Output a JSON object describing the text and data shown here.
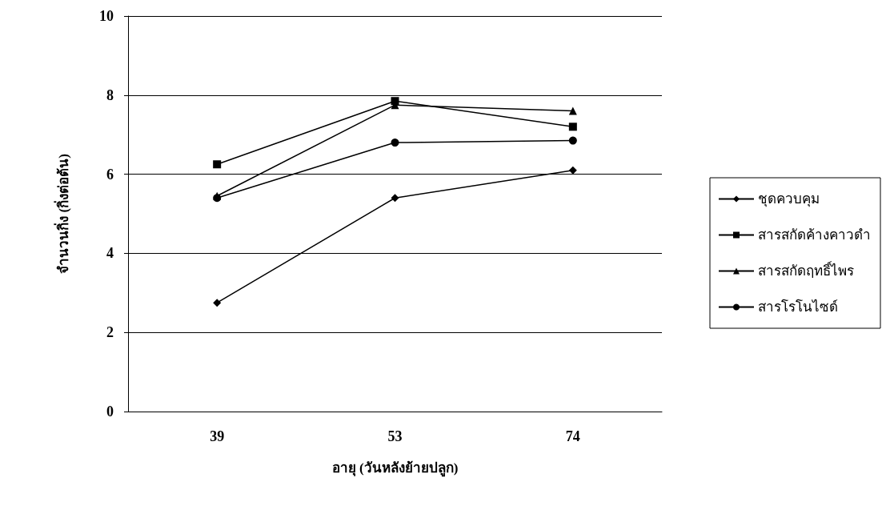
{
  "chart_data": {
    "type": "line",
    "xlabel": "อายุ (วันหลังย้ายปลูก)",
    "ylabel": "จำนวนกิ่ง (กิ่งต่อต้น)",
    "categories": [
      "39",
      "53",
      "74"
    ],
    "series": [
      {
        "name": "ชุดควบคุม",
        "color": "#000000",
        "marker": "diamond",
        "values": [
          2.75,
          5.4,
          6.1
        ]
      },
      {
        "name": "สารสกัดค้างคาวดำ",
        "color": "#000000",
        "marker": "square",
        "values": [
          6.25,
          7.85,
          7.2
        ]
      },
      {
        "name": "สารสกัดฤทธิ์ไพร",
        "color": "#000000",
        "marker": "triangle",
        "values": [
          5.45,
          7.75,
          7.6
        ]
      },
      {
        "name": "สารโรโนไซด์",
        "color": "#000000",
        "marker": "circle",
        "values": [
          5.4,
          6.8,
          6.85
        ]
      }
    ],
    "ylim": [
      0,
      10
    ],
    "yticks": [
      0,
      2,
      4,
      6,
      8,
      10
    ],
    "grid": "y",
    "legend": "right",
    "line_style": "solid"
  }
}
